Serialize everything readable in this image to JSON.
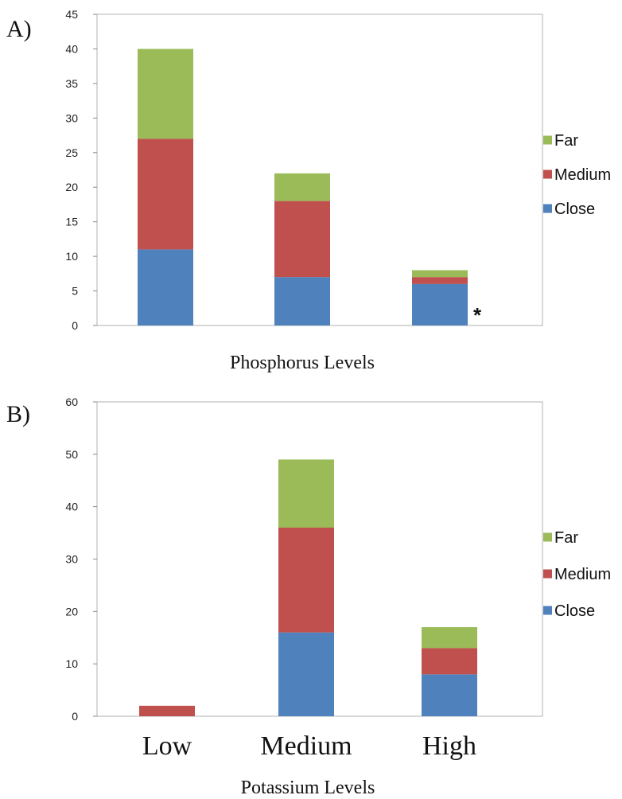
{
  "colors": {
    "Far": "#9BBB59",
    "Medium": "#C0504D",
    "Close": "#4F81BD"
  },
  "chart_data": [
    {
      "panel_label": "A)",
      "type": "bar",
      "stacked": true,
      "xlabel": "Phosphorus Levels",
      "ylabel": "",
      "ylim": [
        0,
        45
      ],
      "yticks": [
        0,
        5,
        10,
        15,
        20,
        25,
        30,
        35,
        40,
        45
      ],
      "categories": [
        "",
        "",
        ""
      ],
      "series": [
        {
          "name": "Close",
          "values": [
            11,
            7,
            6
          ]
        },
        {
          "name": "Medium",
          "values": [
            16,
            11,
            1
          ]
        },
        {
          "name": "Far",
          "values": [
            13,
            4,
            1
          ]
        }
      ],
      "legend_order": [
        "Far",
        "Medium",
        "Close"
      ],
      "legend_position": "right",
      "annotations": [
        {
          "text": "*",
          "category_index": 2
        }
      ],
      "grid": false
    },
    {
      "panel_label": "B)",
      "type": "bar",
      "stacked": true,
      "xlabel": "Potassium Levels",
      "ylabel": "",
      "ylim": [
        0,
        60
      ],
      "yticks": [
        0,
        10,
        20,
        30,
        40,
        50,
        60
      ],
      "categories": [
        "Low",
        "Medium",
        "High"
      ],
      "series": [
        {
          "name": "Close",
          "values": [
            0,
            16,
            8
          ]
        },
        {
          "name": "Medium",
          "values": [
            2,
            20,
            5
          ]
        },
        {
          "name": "Far",
          "values": [
            0,
            13,
            4
          ]
        }
      ],
      "legend_order": [
        "Far",
        "Medium",
        "Close"
      ],
      "legend_position": "right",
      "annotations": [],
      "grid": false
    }
  ]
}
